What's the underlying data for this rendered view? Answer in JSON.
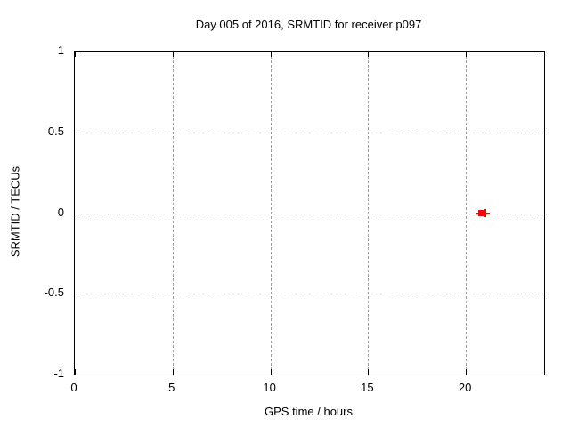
{
  "chart_data": {
    "type": "scatter",
    "title": "Day 005 of 2016, SRMTID for receiver p097",
    "xlabel": "GPS time / hours",
    "ylabel": "SRMTID / TECUs",
    "xlim": [
      0,
      24
    ],
    "ylim": [
      -1,
      1
    ],
    "xticks": [
      0,
      5,
      10,
      15,
      20
    ],
    "xtick_labels": [
      "0",
      "5",
      "10",
      "15",
      "20"
    ],
    "yticks": [
      1,
      0.5,
      0,
      -0.5,
      -1
    ],
    "ytick_labels": [
      "1",
      "0.5",
      "0",
      "-0.5",
      "-1"
    ],
    "grid": true,
    "legend": null,
    "colors": {
      "background": "#ffffff",
      "frame": "#000000",
      "grid": "#9c9c9c",
      "text": "#000000",
      "marker": "#ff0000"
    },
    "series": [
      {
        "name": "srmtid-square-point",
        "marker": "filled-square",
        "color": "#ff0000",
        "points": [
          {
            "x": 20.8,
            "y": 0,
            "xerr": 0.3
          }
        ]
      },
      {
        "name": "srmtid-plus-point",
        "marker": "plus",
        "color": "#ff0000",
        "points": [
          {
            "x": 21.0,
            "y": 0
          }
        ]
      }
    ]
  }
}
